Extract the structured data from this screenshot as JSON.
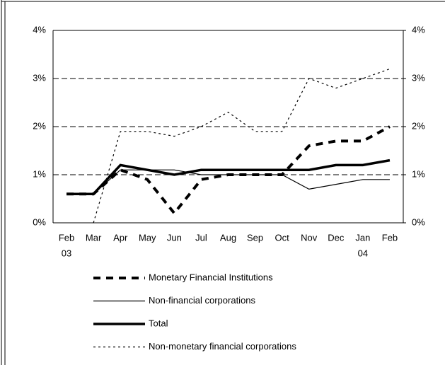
{
  "chart_data": {
    "type": "line",
    "categories": [
      "Feb",
      "Mar",
      "Apr",
      "May",
      "Jun",
      "Jul",
      "Aug",
      "Sep",
      "Oct",
      "Nov",
      "Dec",
      "Jan",
      "Feb"
    ],
    "category_years": [
      "03",
      null,
      null,
      null,
      null,
      null,
      null,
      null,
      null,
      null,
      null,
      "04",
      null
    ],
    "ylim": [
      0,
      4
    ],
    "yticks": [
      {
        "value": 0,
        "label": "0%"
      },
      {
        "value": 1,
        "label": "1%"
      },
      {
        "value": 2,
        "label": "2%"
      },
      {
        "value": 3,
        "label": "3%"
      },
      {
        "value": 4,
        "label": "4%"
      }
    ],
    "y2lim": [
      0,
      4
    ],
    "y2ticks": [
      {
        "value": 0,
        "label": "0%"
      },
      {
        "value": 1,
        "label": "1%"
      },
      {
        "value": 2,
        "label": "2%"
      },
      {
        "value": 3,
        "label": "3%"
      },
      {
        "value": 4,
        "label": "4%"
      }
    ],
    "grid": true,
    "legend": "bottom",
    "series": [
      {
        "name": "Monetary Financial Institutions",
        "color": "#000000",
        "width": 4,
        "dash": "10,8",
        "values": [
          0.6,
          0.6,
          1.1,
          0.9,
          0.2,
          0.9,
          1.0,
          1.0,
          1.0,
          1.6,
          1.7,
          1.7,
          2.0
        ]
      },
      {
        "name": "Non-financial corporations",
        "color": "#000000",
        "width": 1.2,
        "dash": "none",
        "values": [
          0.6,
          0.6,
          1.1,
          1.1,
          1.1,
          1.0,
          1.0,
          1.0,
          1.0,
          0.7,
          0.8,
          0.9,
          0.9
        ]
      },
      {
        "name": "Total",
        "color": "#000000",
        "width": 3.5,
        "dash": "none",
        "values": [
          0.6,
          0.6,
          1.2,
          1.1,
          1.0,
          1.1,
          1.1,
          1.1,
          1.1,
          1.1,
          1.2,
          1.2,
          1.3
        ]
      },
      {
        "name": "Non-monetary financial corporations",
        "color": "#000000",
        "width": 1.2,
        "dash": "3,4",
        "values": [
          null,
          0,
          1.9,
          1.9,
          1.8,
          2.0,
          2.3,
          1.9,
          1.9,
          3.0,
          2.8,
          3.0,
          3.2
        ]
      }
    ]
  }
}
